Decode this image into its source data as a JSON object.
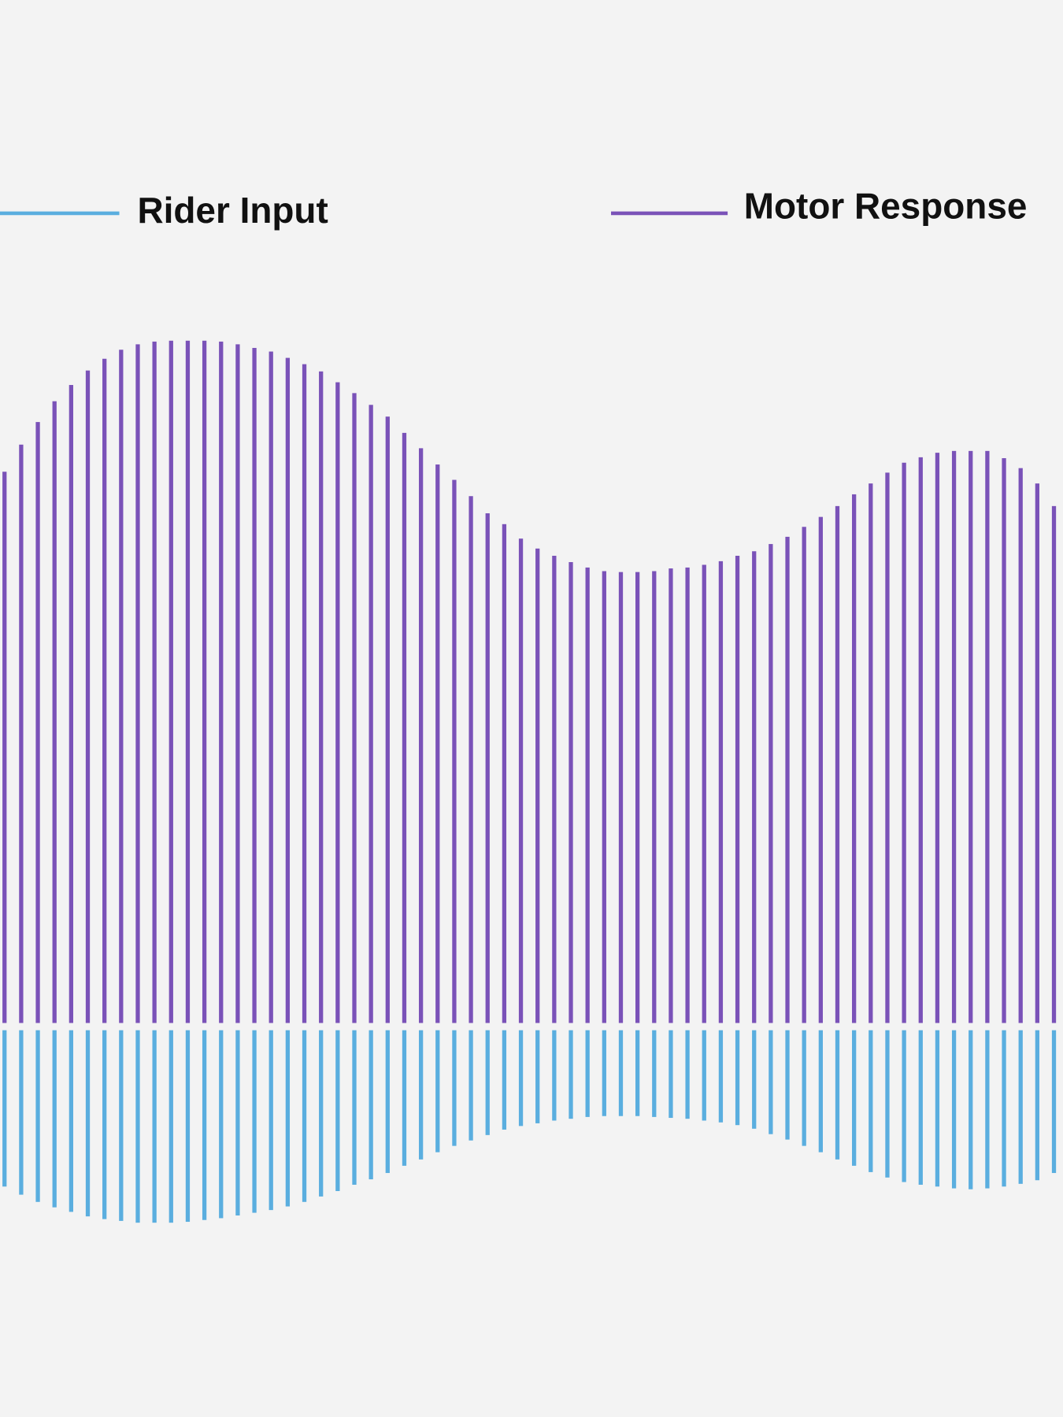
{
  "chart_data": {
    "type": "mirrored-bar",
    "series": [
      {
        "name": "Rider Input",
        "color": "#5aaedf",
        "values": [
          173,
          182,
          190,
          196,
          201,
          206,
          209,
          211,
          213,
          213,
          213,
          212,
          210,
          208,
          205,
          202,
          199,
          195,
          190,
          184,
          178,
          171,
          165,
          158,
          150,
          143,
          135,
          128,
          122,
          116,
          110,
          106,
          103,
          100,
          98,
          96,
          95,
          95,
          95,
          96,
          97,
          98,
          100,
          102,
          105,
          109,
          115,
          121,
          128,
          135,
          143,
          150,
          157,
          163,
          168,
          171,
          173,
          175,
          176,
          175,
          173,
          170,
          166,
          158
        ]
      },
      {
        "name": "Motor Response",
        "color": "#7a52b8",
        "values": [
          610,
          640,
          665,
          688,
          706,
          722,
          735,
          745,
          751,
          754,
          755,
          755,
          755,
          754,
          751,
          747,
          743,
          736,
          729,
          721,
          709,
          697,
          684,
          671,
          653,
          636,
          618,
          601,
          583,
          564,
          552,
          536,
          525,
          517,
          510,
          504,
          500,
          499,
          499,
          500,
          503,
          504,
          507,
          511,
          517,
          522,
          530,
          538,
          549,
          560,
          572,
          585,
          597,
          609,
          620,
          626,
          631,
          633,
          633,
          633,
          625,
          614,
          597,
          572
        ]
      }
    ],
    "ylim": [
      0,
      800
    ]
  }
}
